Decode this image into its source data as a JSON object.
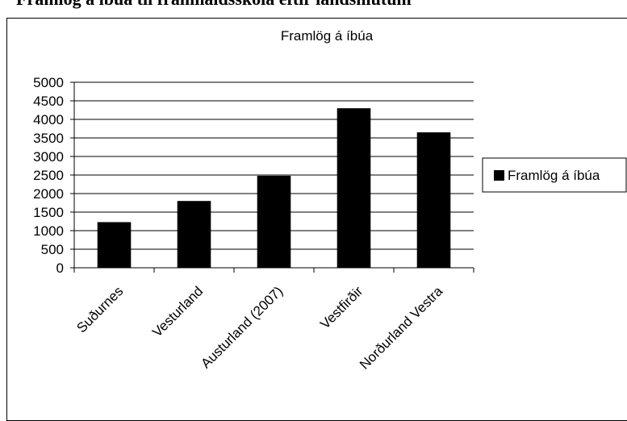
{
  "page": {
    "heading": "Framlög á íbúa til framhaldsskóla eftir landshlutum"
  },
  "colors": {
    "bar": "#000000",
    "grid": "#000000",
    "background": "#ffffff"
  },
  "chart_data": {
    "type": "bar",
    "title": "Framlög á íbúa",
    "categories": [
      "Suðurnes",
      "Vesturland",
      "Austurland (2007)",
      "Vestfirðir",
      "Norðurland Vestra"
    ],
    "series": [
      {
        "name": "Framlög á íbúa",
        "values": [
          1230,
          1800,
          2480,
          4300,
          3650
        ]
      }
    ],
    "ylim": [
      0,
      5000
    ],
    "yticks": [
      0,
      500,
      1000,
      1500,
      2000,
      2500,
      3000,
      3500,
      4000,
      4500,
      5000
    ],
    "grid": true,
    "legend_position": "right",
    "xlabel": "",
    "ylabel": ""
  }
}
